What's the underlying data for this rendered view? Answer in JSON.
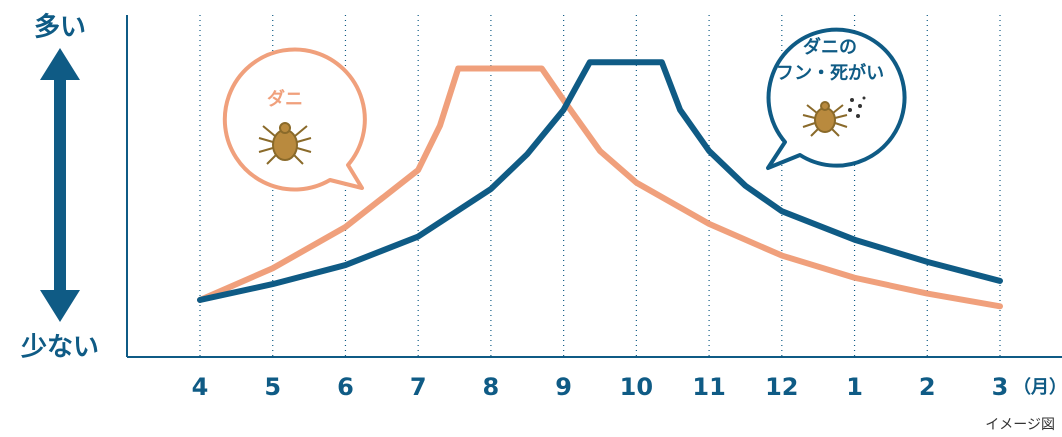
{
  "chart_data": {
    "type": "line",
    "ylabel_top": "多い",
    "ylabel_bottom": "少ない",
    "xlabel": "（月）",
    "note": "イメージ図",
    "xlim": [
      0,
      11
    ],
    "ylim": [
      0,
      100
    ],
    "xticks": [
      {
        "value": 0,
        "label": "4"
      },
      {
        "value": 1,
        "label": "5"
      },
      {
        "value": 2,
        "label": "6"
      },
      {
        "value": 3,
        "label": "7"
      },
      {
        "value": 4,
        "label": "8"
      },
      {
        "value": 5,
        "label": "9"
      },
      {
        "value": 6,
        "label": "10"
      },
      {
        "value": 7,
        "label": "11"
      },
      {
        "value": 8,
        "label": "12"
      },
      {
        "value": 9,
        "label": "1"
      },
      {
        "value": 10,
        "label": "2"
      },
      {
        "value": 11,
        "label": "3"
      }
    ],
    "grid": true,
    "series": [
      {
        "label_lines": [
          "ダニ"
        ],
        "color": "#f0a07c",
        "x": [
          0,
          1,
          2,
          3,
          3.3,
          3.55,
          4.7,
          5,
          5.5,
          6,
          7,
          8,
          9,
          10,
          11
        ],
        "values": [
          18,
          28,
          41,
          59,
          73,
          91,
          91,
          81,
          65,
          55,
          42,
          32,
          25,
          20,
          16
        ]
      },
      {
        "label_lines": [
          "ダニの",
          "フン・死がい"
        ],
        "color": "#0f5b85",
        "x": [
          0,
          1,
          2,
          3,
          4,
          4.5,
          5,
          5.36,
          6.35,
          6.6,
          7,
          7.5,
          8,
          9,
          10,
          11
        ],
        "values": [
          18,
          23,
          29,
          38,
          53,
          64,
          78,
          93,
          93,
          78,
          65,
          54,
          46,
          37,
          30,
          24
        ]
      }
    ]
  }
}
